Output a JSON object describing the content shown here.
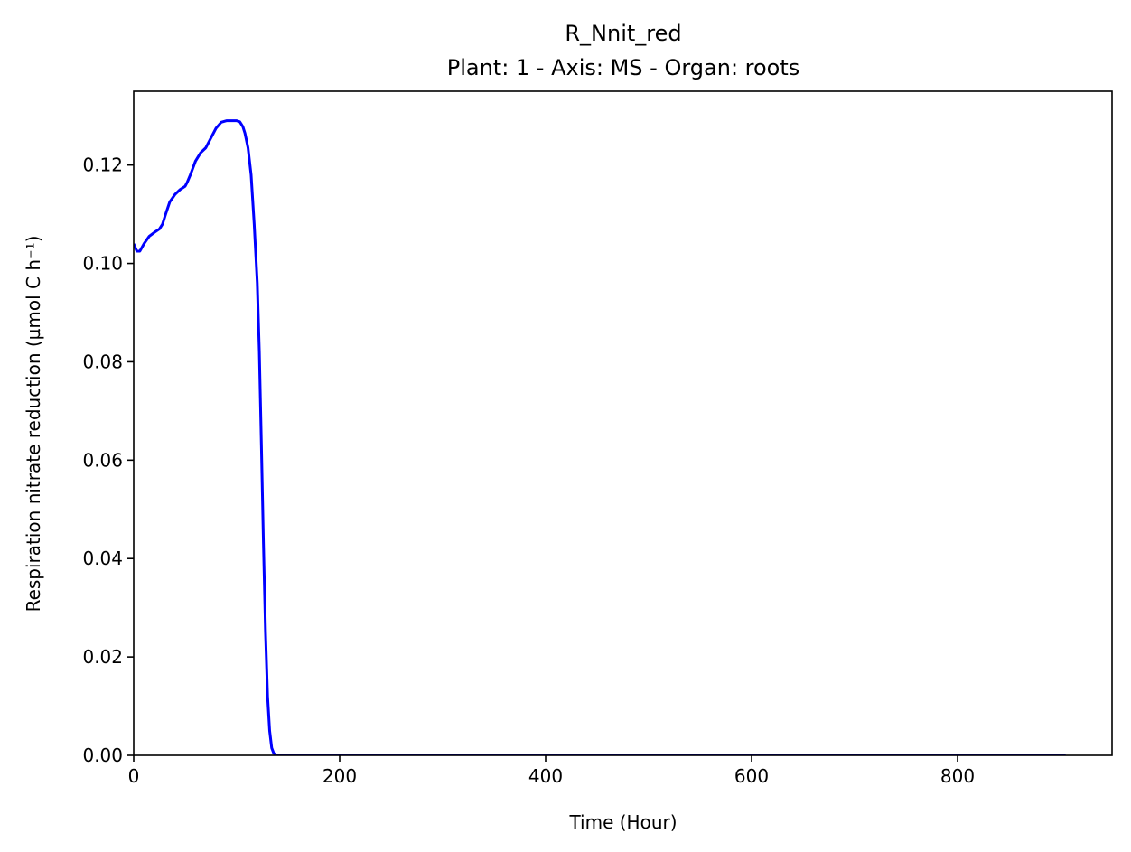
{
  "chart_data": {
    "type": "line",
    "title": "R_Nnit_red",
    "subtitle": "Plant: 1 - Axis: MS - Organ: roots",
    "xlabel": "Time (Hour)",
    "ylabel": "Respiration nitrate reduction (µmol C h⁻¹)",
    "xlim": [
      0,
      950
    ],
    "ylim": [
      0,
      0.135
    ],
    "xticks": [
      0,
      200,
      400,
      600,
      800
    ],
    "xtick_labels": [
      "0",
      "200",
      "400",
      "600",
      "800"
    ],
    "yticks": [
      0,
      0.02,
      0.04,
      0.06,
      0.08,
      0.1,
      0.12
    ],
    "ytick_labels": [
      "0.00",
      "0.02",
      "0.04",
      "0.06",
      "0.08",
      "0.10",
      "0.12"
    ],
    "grid": false,
    "series": [
      {
        "color": "#0000ff",
        "x": [
          0,
          3,
          6,
          10,
          15,
          20,
          25,
          28,
          31,
          35,
          40,
          45,
          50,
          52,
          55,
          60,
          65,
          70,
          75,
          80,
          85,
          90,
          95,
          100,
          103,
          106,
          108,
          111,
          114,
          117,
          120,
          122,
          124,
          126,
          128,
          130,
          132,
          134,
          136,
          138,
          140,
          142,
          145,
          150,
          200,
          300,
          400,
          500,
          600,
          700,
          800,
          905
        ],
        "y": [
          0.104,
          0.1025,
          0.1025,
          0.104,
          0.1055,
          0.1063,
          0.107,
          0.108,
          0.11,
          0.1125,
          0.114,
          0.115,
          0.1157,
          0.1165,
          0.118,
          0.1208,
          0.1225,
          0.1235,
          0.1255,
          0.1275,
          0.1287,
          0.129,
          0.129,
          0.129,
          0.1288,
          0.1278,
          0.1265,
          0.1235,
          0.118,
          0.108,
          0.096,
          0.082,
          0.063,
          0.043,
          0.025,
          0.012,
          0.005,
          0.0015,
          0.0004,
          0.0001,
          3e-05,
          0,
          0,
          0,
          0,
          0,
          0,
          0,
          0,
          0,
          0,
          0
        ]
      }
    ]
  }
}
